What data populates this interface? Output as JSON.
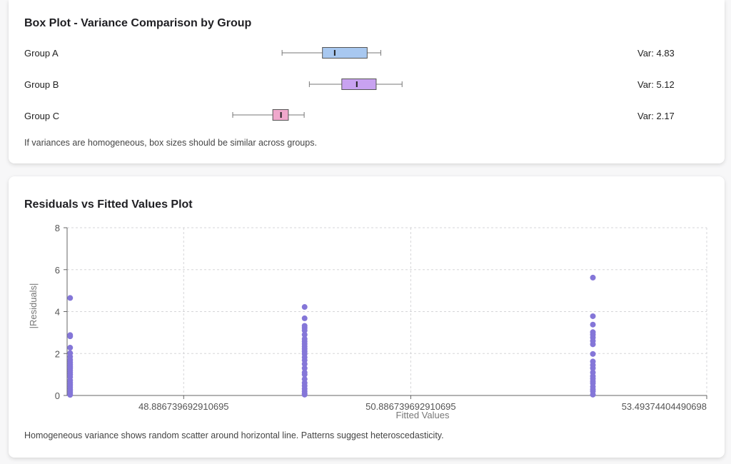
{
  "box_card": {
    "title": "Box Plot - Variance Comparison by Group",
    "note": "If variances are homogeneous, box sizes should be similar across groups."
  },
  "resid_card": {
    "title": "Residuals vs Fitted Values Plot",
    "note": "Homogeneous variance shows random scatter around horizontal line. Patterns suggest heteroscedasticity."
  },
  "chart_data": [
    {
      "type": "box",
      "title": "Box Plot - Variance Comparison by Group",
      "groups": [
        {
          "name": "Group A",
          "var_label": "Var: 4.83",
          "min": 0.181,
          "q1": 0.329,
          "median": 0.374,
          "q3": 0.493,
          "max": 0.543,
          "color": "#a8c8f0"
        },
        {
          "name": "Group B",
          "var_label": "Var: 5.12",
          "min": 0.281,
          "q1": 0.4,
          "median": 0.455,
          "q3": 0.526,
          "max": 0.621,
          "color": "#c8a2f0"
        },
        {
          "name": "Group C",
          "var_label": "Var: 2.17",
          "min": 0.0,
          "q1": 0.147,
          "median": 0.177,
          "q3": 0.204,
          "max": 0.262,
          "color": "#f0a8cc"
        }
      ],
      "domain": [
        0,
        1
      ]
    },
    {
      "type": "scatter",
      "title": "Residuals vs Fitted Values Plot",
      "xlabel": "Fitted Values",
      "ylabel": "|Residuals|",
      "ylim": [
        0,
        8
      ],
      "yticks": [
        0,
        2,
        4,
        6,
        8
      ],
      "xticks": [
        "48.886739692910695",
        "50.886739692910695",
        "53.49374404490698"
      ],
      "xtick_values": [
        48.886739692910695,
        50.886739692910695,
        53.49374404490698
      ],
      "xlim": [
        47.86,
        53.49374404490698
      ],
      "grid": true,
      "color": "#8476d8",
      "series": [
        {
          "x": 47.886739692910695,
          "y": [
            4.65,
            2.88,
            2.82,
            2.28,
            2.02,
            1.85,
            1.7,
            1.58,
            1.47,
            1.38,
            1.3,
            1.2,
            1.1,
            1.0,
            0.88,
            0.72,
            0.6,
            0.5,
            0.4,
            0.3,
            0.22,
            0.12,
            0.03
          ]
        },
        {
          "x": 49.952,
          "y": [
            4.22,
            3.68,
            3.32,
            3.22,
            3.1,
            2.9,
            2.7,
            2.58,
            2.46,
            2.34,
            2.22,
            2.1,
            1.98,
            1.82,
            1.68,
            1.5,
            1.3,
            1.1,
            1.0,
            0.78,
            0.6,
            0.46,
            0.32,
            0.2,
            0.1,
            0.04
          ]
        },
        {
          "x": 52.491,
          "y": [
            5.62,
            3.78,
            3.38,
            3.02,
            2.9,
            2.76,
            2.6,
            2.44,
            1.98,
            1.62,
            1.45,
            1.3,
            1.1,
            0.92,
            0.8,
            0.68,
            0.58,
            0.42,
            0.3,
            0.2,
            0.04
          ]
        }
      ]
    }
  ]
}
